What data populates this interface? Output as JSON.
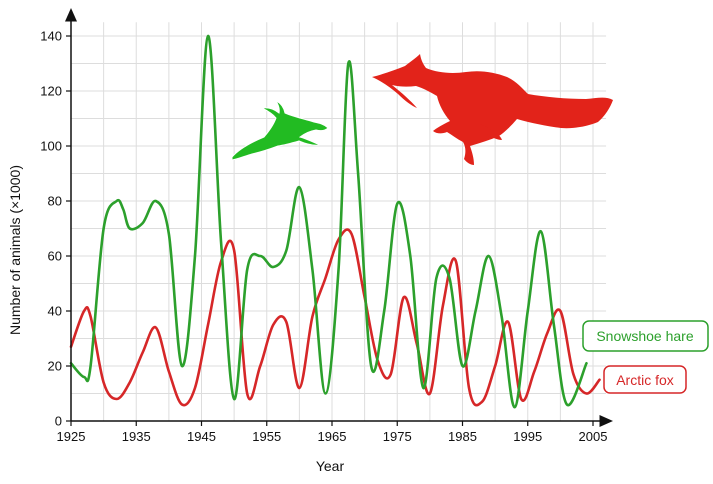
{
  "chart_data": {
    "type": "line",
    "xlabel": "Year",
    "ylabel": "Number of animals (×1000)",
    "xlim": [
      1925,
      2007
    ],
    "ylim": [
      0,
      145
    ],
    "x_ticks": [
      1925,
      1935,
      1945,
      1955,
      1965,
      1975,
      1985,
      1995,
      2005
    ],
    "y_ticks": [
      0,
      20,
      40,
      60,
      80,
      100,
      120,
      140
    ],
    "grid": true,
    "legend_placement": "right",
    "series": [
      {
        "name": "Snowshoe hare",
        "color": "#2ca02c",
        "x": [
          1925,
          1927,
          1928,
          1930,
          1932,
          1933,
          1934,
          1936,
          1938,
          1940,
          1942,
          1944,
          1946,
          1948,
          1950,
          1952,
          1954,
          1956,
          1958,
          1960,
          1962,
          1964,
          1966,
          1967.5,
          1969,
          1971,
          1973,
          1975,
          1977,
          1979,
          1981,
          1983,
          1985,
          1987,
          1989,
          1991,
          1993,
          1995,
          1997,
          1999,
          2001,
          2004
        ],
        "values": [
          21,
          16,
          20,
          70,
          80,
          77,
          70,
          72,
          80,
          68,
          20,
          60,
          140,
          65,
          8,
          55,
          60,
          56,
          62,
          85,
          55,
          10,
          55,
          130,
          90,
          20,
          40,
          79,
          60,
          12,
          52,
          52,
          20,
          40,
          60,
          38,
          5,
          40,
          69,
          35,
          6,
          21
        ]
      },
      {
        "name": "Arctic fox",
        "color": "#d62728",
        "x": [
          1925,
          1927,
          1928,
          1930,
          1932,
          1934,
          1936,
          1938,
          1940,
          1942,
          1944,
          1946,
          1948,
          1950,
          1952,
          1954,
          1956,
          1958,
          1960,
          1962,
          1964,
          1966,
          1968,
          1970,
          1972,
          1974,
          1976,
          1978,
          1980,
          1982,
          1984,
          1986,
          1988,
          1990,
          1992,
          1994,
          1996,
          1998,
          2000,
          2002,
          2004,
          2006
        ],
        "values": [
          27,
          40,
          38,
          14,
          8,
          14,
          25,
          34,
          18,
          6,
          12,
          35,
          58,
          62,
          10,
          20,
          35,
          36,
          12,
          38,
          52,
          66,
          68,
          45,
          22,
          17,
          45,
          28,
          10,
          42,
          58,
          12,
          7,
          20,
          36,
          8,
          18,
          32,
          40,
          17,
          10,
          15
        ]
      }
    ]
  },
  "legend": {
    "hare_label": "Snowshoe hare",
    "fox_label": "Arctic fox"
  },
  "icons": [
    "hare-silhouette",
    "fox-silhouette"
  ],
  "colors": {
    "hare": "#2ca02c",
    "fox": "#d62728",
    "grid": "#dddddd",
    "axis": "#111111"
  }
}
